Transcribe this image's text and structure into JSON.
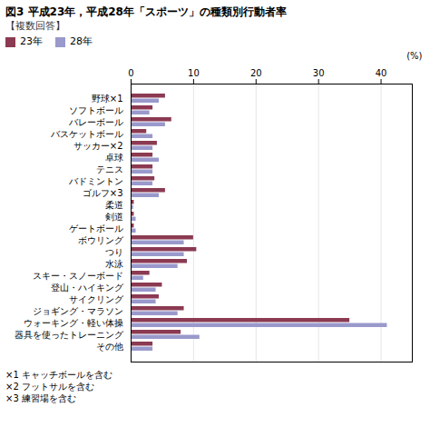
{
  "chart_data": {
    "type": "bar",
    "orientation": "horizontal",
    "title": "図3  平成23年，平成28年「スポーツ」の種類別行動者率",
    "subtitle": "【複数回答】",
    "xlabel": "(%)",
    "categories": [
      "野球×1",
      "ソフトボール",
      "バレーボール",
      "バスケットボール",
      "サッカー×2",
      "卓球",
      "テニス",
      "バドミントン",
      "ゴルフ×3",
      "柔道",
      "剣道",
      "ゲートボール",
      "ボウリング",
      "つり",
      "水泳",
      "スキー・スノーボード",
      "登山・ハイキング",
      "サイクリング",
      "ジョギング・マラソン",
      "ウォーキング・軽い体操",
      "器具を使ったトレーニング",
      "その他"
    ],
    "series": [
      {
        "name": "23年",
        "color": "#8B3A52",
        "values": [
          5.5,
          3.5,
          6.5,
          2.5,
          4.2,
          3.5,
          3.5,
          3.8,
          5.5,
          0.5,
          0.5,
          0.5,
          10.0,
          10.5,
          9.0,
          3.0,
          5.0,
          4.5,
          8.5,
          35.0,
          8.0,
          3.5
        ]
      },
      {
        "name": "28年",
        "color": "#9999CC",
        "values": [
          4.5,
          3.0,
          5.5,
          3.5,
          3.5,
          4.5,
          3.5,
          3.5,
          4.5,
          0.4,
          0.8,
          0.8,
          8.5,
          8.5,
          7.5,
          2.0,
          4.0,
          4.0,
          7.5,
          41.0,
          11.0,
          3.5
        ]
      }
    ],
    "xlim": [
      0,
      45
    ],
    "xticks": [
      0,
      10,
      20,
      30,
      40
    ],
    "grid": true,
    "legend": "top",
    "annotations": [
      "×1  キャッチボールを含む",
      "×2  フットサルを含む",
      "×3  練習場を含む"
    ]
  }
}
